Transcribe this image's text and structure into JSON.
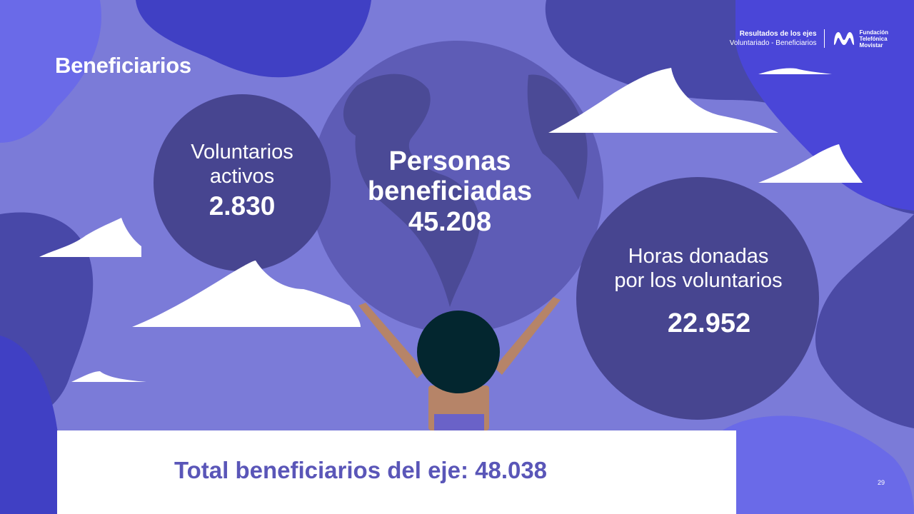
{
  "slide": {
    "title": "Beneficiarios",
    "header": {
      "line1": "Resultados de los ejes",
      "line2": "Voluntariado - Beneficiarios"
    },
    "logo": {
      "line1": "Fundación",
      "line2": "Telefónica",
      "line3": "Movistar",
      "icon": "movistar-m-icon"
    },
    "stats": {
      "voluntarios": {
        "label_line1": "Voluntarios",
        "label_line2": "activos",
        "value": "2.830"
      },
      "personas": {
        "label_line1": "Personas",
        "label_line2": "beneficiadas",
        "value": "45.208"
      },
      "horas": {
        "label_line1": "Horas donadas",
        "label_line2": "por los voluntarios",
        "value": "22.952"
      }
    },
    "total": "Total beneficiarios del eje: 48.038",
    "page_number": "29",
    "colors": {
      "background": "#7b7bd8",
      "dark_circle": "#474590",
      "globe": "#5e5cb6",
      "blob_blue": "#4444cc",
      "total_text": "#5a56b8"
    }
  }
}
